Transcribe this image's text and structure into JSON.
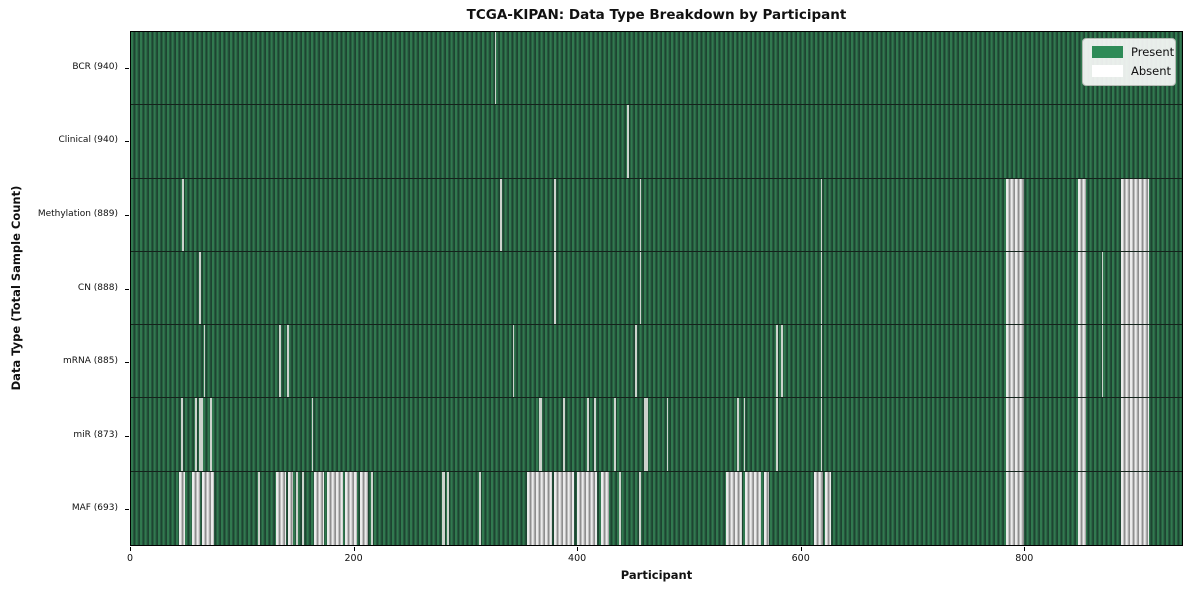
{
  "title": "TCGA-KIPAN: Data Type Breakdown by Participant",
  "axes": {
    "xlabel": "Participant",
    "ylabel": "Data Type (Total Sample Count)"
  },
  "legend": {
    "items": [
      {
        "label": "Present",
        "color": "#2e8b57"
      },
      {
        "label": "Absent",
        "color": "#ffffff"
      }
    ]
  },
  "chart_data": {
    "type": "heatmap",
    "title": "TCGA-KIPAN: Data Type Breakdown by Participant",
    "xlabel": "Participant",
    "ylabel": "Data Type (Total Sample Count)",
    "legend_position": "upper right",
    "present_color": "#2e8b57",
    "absent_color": "#ffffff",
    "x_axis": {
      "ticks": [
        0,
        200,
        400,
        600,
        800
      ],
      "lim": [
        0,
        942
      ]
    },
    "rows": [
      {
        "key": "bcr",
        "label": "BCR (940)",
        "data_type": "BCR",
        "total_samples": 940,
        "absent_segments": [
          [
            326,
            327.5
          ]
        ]
      },
      {
        "key": "clinical",
        "label": "Clinical (940)",
        "data_type": "Clinical",
        "total_samples": 940,
        "absent_segments": [
          [
            445,
            446.5
          ]
        ]
      },
      {
        "key": "methylation",
        "label": "Methylation (889)",
        "data_type": "Methylation",
        "total_samples": 889,
        "absent_segments": [
          [
            46,
            47.5
          ],
          [
            331,
            332.5
          ],
          [
            379,
            380.5
          ],
          [
            456,
            457.5
          ],
          [
            618,
            619.5
          ],
          [
            784,
            800
          ],
          [
            849,
            856
          ],
          [
            887,
            912
          ]
        ]
      },
      {
        "key": "cn",
        "label": "CN (888)",
        "data_type": "CN",
        "total_samples": 888,
        "absent_segments": [
          [
            61,
            62.5
          ],
          [
            379,
            380.5
          ],
          [
            456,
            457.5
          ],
          [
            618,
            619.5
          ],
          [
            784,
            800
          ],
          [
            849,
            856
          ],
          [
            870,
            871.5
          ],
          [
            887,
            912
          ]
        ]
      },
      {
        "key": "mrna",
        "label": "mRNA (885)",
        "data_type": "mRNA",
        "total_samples": 885,
        "absent_segments": [
          [
            65,
            66.5
          ],
          [
            133,
            134.5
          ],
          [
            140,
            141.5
          ],
          [
            342,
            343.5
          ],
          [
            452,
            453.5
          ],
          [
            578,
            579.5
          ],
          [
            583,
            584.5
          ],
          [
            618,
            619.5
          ],
          [
            784,
            800
          ],
          [
            849,
            856
          ],
          [
            870,
            871.5
          ],
          [
            887,
            912
          ]
        ]
      },
      {
        "key": "mir",
        "label": "miR (873)",
        "data_type": "miR",
        "total_samples": 873,
        "absent_segments": [
          [
            45,
            46.5
          ],
          [
            57,
            59
          ],
          [
            61,
            64.5
          ],
          [
            71,
            73
          ],
          [
            162,
            163.5
          ],
          [
            366,
            368
          ],
          [
            387,
            389
          ],
          [
            409,
            410.5
          ],
          [
            415,
            416.5
          ],
          [
            433,
            434.5
          ],
          [
            460,
            463
          ],
          [
            480,
            481.5
          ],
          [
            543,
            544.5
          ],
          [
            549,
            550.5
          ],
          [
            578,
            579.5
          ],
          [
            618,
            619.5
          ],
          [
            784,
            800
          ],
          [
            849,
            856
          ],
          [
            887,
            912
          ]
        ]
      },
      {
        "key": "maf",
        "label": "MAF (693)",
        "data_type": "MAF",
        "total_samples": 693,
        "absent_segments": [
          [
            43,
            48
          ],
          [
            55,
            62
          ],
          [
            63.5,
            74
          ],
          [
            114,
            116
          ],
          [
            130,
            139
          ],
          [
            141,
            145
          ],
          [
            148,
            150
          ],
          [
            153,
            155
          ],
          [
            164,
            173
          ],
          [
            176,
            190
          ],
          [
            192,
            203
          ],
          [
            205,
            212
          ],
          [
            215,
            217
          ],
          [
            279,
            281
          ],
          [
            283,
            285
          ],
          [
            312,
            314
          ],
          [
            355,
            377
          ],
          [
            379,
            397
          ],
          [
            400,
            418
          ],
          [
            421,
            428
          ],
          [
            437,
            439
          ],
          [
            455,
            457
          ],
          [
            533,
            548
          ],
          [
            550,
            565
          ],
          [
            567,
            572
          ],
          [
            612,
            620
          ],
          [
            622,
            627
          ],
          [
            784,
            800
          ],
          [
            849,
            856
          ],
          [
            887,
            912
          ]
        ]
      }
    ]
  }
}
